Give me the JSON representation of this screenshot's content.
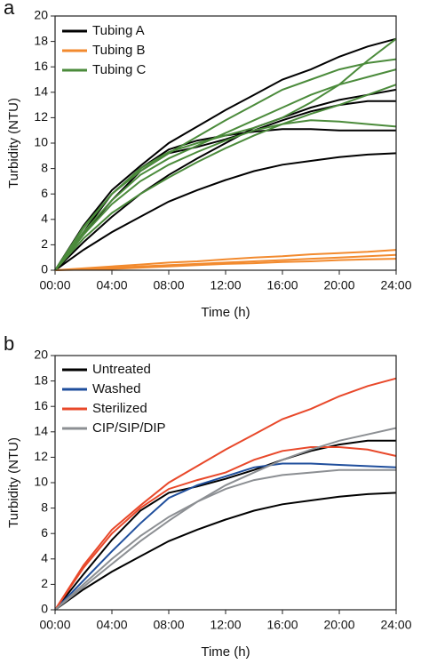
{
  "chart_data": [
    {
      "type": "line",
      "panel_label": "a",
      "x_label": "Time (h)",
      "y_label": "Turbidity (NTU)",
      "x": [
        0,
        2,
        4,
        6,
        8,
        10,
        12,
        14,
        16,
        18,
        20,
        22,
        24
      ],
      "xlim": [
        0,
        24
      ],
      "xticks": [
        {
          "value": 0,
          "label": "00:00"
        },
        {
          "value": 4,
          "label": "04:00"
        },
        {
          "value": 8,
          "label": "08:00"
        },
        {
          "value": 12,
          "label": "12:00"
        },
        {
          "value": 16,
          "label": "16:00"
        },
        {
          "value": 20,
          "label": "20:00"
        },
        {
          "value": 24,
          "label": "24:00"
        }
      ],
      "ylim": [
        0,
        20
      ],
      "yticks": [
        0,
        2,
        4,
        6,
        8,
        10,
        12,
        14,
        16,
        18,
        20
      ],
      "series": [
        {
          "name": "Tubing A",
          "color": "#000000",
          "lines": [
            [
              0,
              3.5,
              6.3,
              8.2,
              10,
              11.3,
              12.6,
              13.8,
              15,
              15.8,
              16.8,
              17.6,
              18.2
            ],
            [
              0,
              1.6,
              3,
              4.2,
              5.4,
              6.3,
              7.1,
              7.8,
              8.3,
              8.6,
              8.9,
              9.1,
              9.2
            ],
            [
              0,
              2.8,
              5.5,
              7.8,
              9.2,
              9.7,
              10.3,
              11,
              11.8,
              12.5,
              13,
              13.3,
              13.3
            ],
            [
              0,
              3,
              6,
              8,
              9.5,
              10.2,
              10.6,
              10.9,
              11.1,
              11.1,
              11,
              11,
              11
            ],
            [
              0,
              2.2,
              4.2,
              6,
              7.5,
              8.8,
              10,
              11.2,
              12,
              12.8,
              13.4,
              13.8,
              14.2
            ]
          ]
        },
        {
          "name": "Tubing B",
          "color": "#f28a2e",
          "lines": [
            [
              0,
              0.15,
              0.3,
              0.45,
              0.6,
              0.7,
              0.85,
              1,
              1.1,
              1.25,
              1.35,
              1.45,
              1.6
            ],
            [
              0,
              0.1,
              0.2,
              0.3,
              0.4,
              0.5,
              0.6,
              0.7,
              0.8,
              0.9,
              1,
              1.1,
              1.2
            ],
            [
              0,
              0.05,
              0.1,
              0.2,
              0.3,
              0.4,
              0.5,
              0.55,
              0.65,
              0.7,
              0.8,
              0.85,
              0.9
            ]
          ]
        },
        {
          "name": "Tubing C",
          "color": "#4b8b3b",
          "lines": [
            [
              0,
              3.3,
              6,
              7.8,
              9.2,
              10.5,
              11.8,
              13,
              14.2,
              15,
              15.8,
              16.3,
              16.6
            ],
            [
              0,
              3,
              5.5,
              7.5,
              8.8,
              9.8,
              10.8,
              11.8,
              12.8,
              13.8,
              14.6,
              15.2,
              15.8
            ],
            [
              0,
              3.4,
              6,
              8,
              9.3,
              10,
              10.6,
              11.2,
              12,
              13.2,
              14.6,
              16.5,
              18.2
            ],
            [
              0,
              2.5,
              4.5,
              6,
              7.3,
              8.5,
              9.6,
              10.6,
              11.5,
              12.3,
              13,
              13.8,
              14.6
            ],
            [
              0,
              2.8,
              5.2,
              7,
              8.3,
              9.3,
              10.2,
              11,
              11.5,
              11.8,
              11.7,
              11.5,
              11.3
            ]
          ]
        }
      ]
    },
    {
      "type": "line",
      "panel_label": "b",
      "x_label": "Time (h)",
      "y_label": "Turbidity (NTU)",
      "x": [
        0,
        2,
        4,
        6,
        8,
        10,
        12,
        14,
        16,
        18,
        20,
        22,
        24
      ],
      "xlim": [
        0,
        24
      ],
      "xticks": [
        {
          "value": 0,
          "label": "00:00"
        },
        {
          "value": 4,
          "label": "04:00"
        },
        {
          "value": 8,
          "label": "08:00"
        },
        {
          "value": 12,
          "label": "12:00"
        },
        {
          "value": 16,
          "label": "16:00"
        },
        {
          "value": 20,
          "label": "20:00"
        },
        {
          "value": 24,
          "label": "24:00"
        }
      ],
      "ylim": [
        0,
        20
      ],
      "yticks": [
        0,
        2,
        4,
        6,
        8,
        10,
        12,
        14,
        16,
        18,
        20
      ],
      "series": [
        {
          "name": "Untreated",
          "color": "#000000",
          "lines": [
            [
              0,
              1.6,
              3,
              4.2,
              5.4,
              6.3,
              7.1,
              7.8,
              8.3,
              8.6,
              8.9,
              9.1,
              9.2
            ],
            [
              0,
              2.8,
              5.5,
              7.8,
              9.2,
              9.7,
              10.3,
              11,
              11.8,
              12.5,
              13,
              13.3,
              13.3
            ]
          ]
        },
        {
          "name": "Washed",
          "color": "#1f4e9c",
          "lines": [
            [
              0,
              2.3,
              4.6,
              6.8,
              8.8,
              9.8,
              10.5,
              11.2,
              11.5,
              11.5,
              11.4,
              11.3,
              11.2
            ]
          ]
        },
        {
          "name": "Sterilized",
          "color": "#e8482a",
          "lines": [
            [
              0,
              3.5,
              6.3,
              8.2,
              10,
              11.3,
              12.6,
              13.8,
              15,
              15.8,
              16.8,
              17.6,
              18.2
            ],
            [
              0,
              3.3,
              6,
              8,
              9.5,
              10.2,
              10.8,
              11.8,
              12.5,
              12.8,
              12.8,
              12.6,
              12.1
            ]
          ]
        },
        {
          "name": "CIP/SIP/DIP",
          "color": "#8c8f93",
          "lines": [
            [
              0,
              1.8,
              3.6,
              5.4,
              7,
              8.5,
              9.8,
              10.8,
              11.8,
              12.6,
              13.3,
              13.8,
              14.3
            ],
            [
              0,
              2,
              4,
              5.8,
              7.3,
              8.5,
              9.5,
              10.2,
              10.6,
              10.8,
              11,
              11,
              11
            ]
          ]
        }
      ]
    }
  ]
}
